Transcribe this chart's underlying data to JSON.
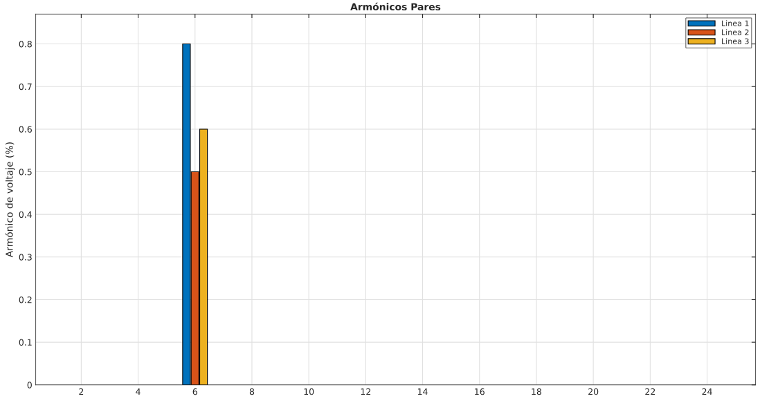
{
  "chart_data": {
    "type": "bar",
    "title": "Armónicos Pares",
    "ylabel": "Armónico de voltaje (%)",
    "x": [
      2,
      4,
      6,
      8,
      10,
      12,
      14,
      16,
      18,
      20,
      22,
      24
    ],
    "series": [
      {
        "name": "Linea 1",
        "color": "#0072bd",
        "values": [
          0,
          0,
          0.8,
          0,
          0,
          0,
          0,
          0,
          0,
          0,
          0,
          0
        ]
      },
      {
        "name": "Linea 2",
        "color": "#d95319",
        "values": [
          0,
          0,
          0.5,
          0,
          0,
          0,
          0,
          0,
          0,
          0,
          0,
          0
        ]
      },
      {
        "name": "Linea 3",
        "color": "#edb120",
        "values": [
          0,
          0,
          0.6,
          0,
          0,
          0,
          0,
          0,
          0,
          0,
          0,
          0
        ]
      }
    ],
    "xlim": [
      0.4,
      25.7
    ],
    "xticks": [
      2,
      4,
      6,
      8,
      10,
      12,
      14,
      16,
      18,
      20,
      22,
      24
    ],
    "ylim": [
      0,
      0.87
    ],
    "yticks": [
      0,
      0.1,
      0.2,
      0.3,
      0.4,
      0.5,
      0.6,
      0.7,
      0.8
    ],
    "grid": true,
    "legend": "top right"
  }
}
